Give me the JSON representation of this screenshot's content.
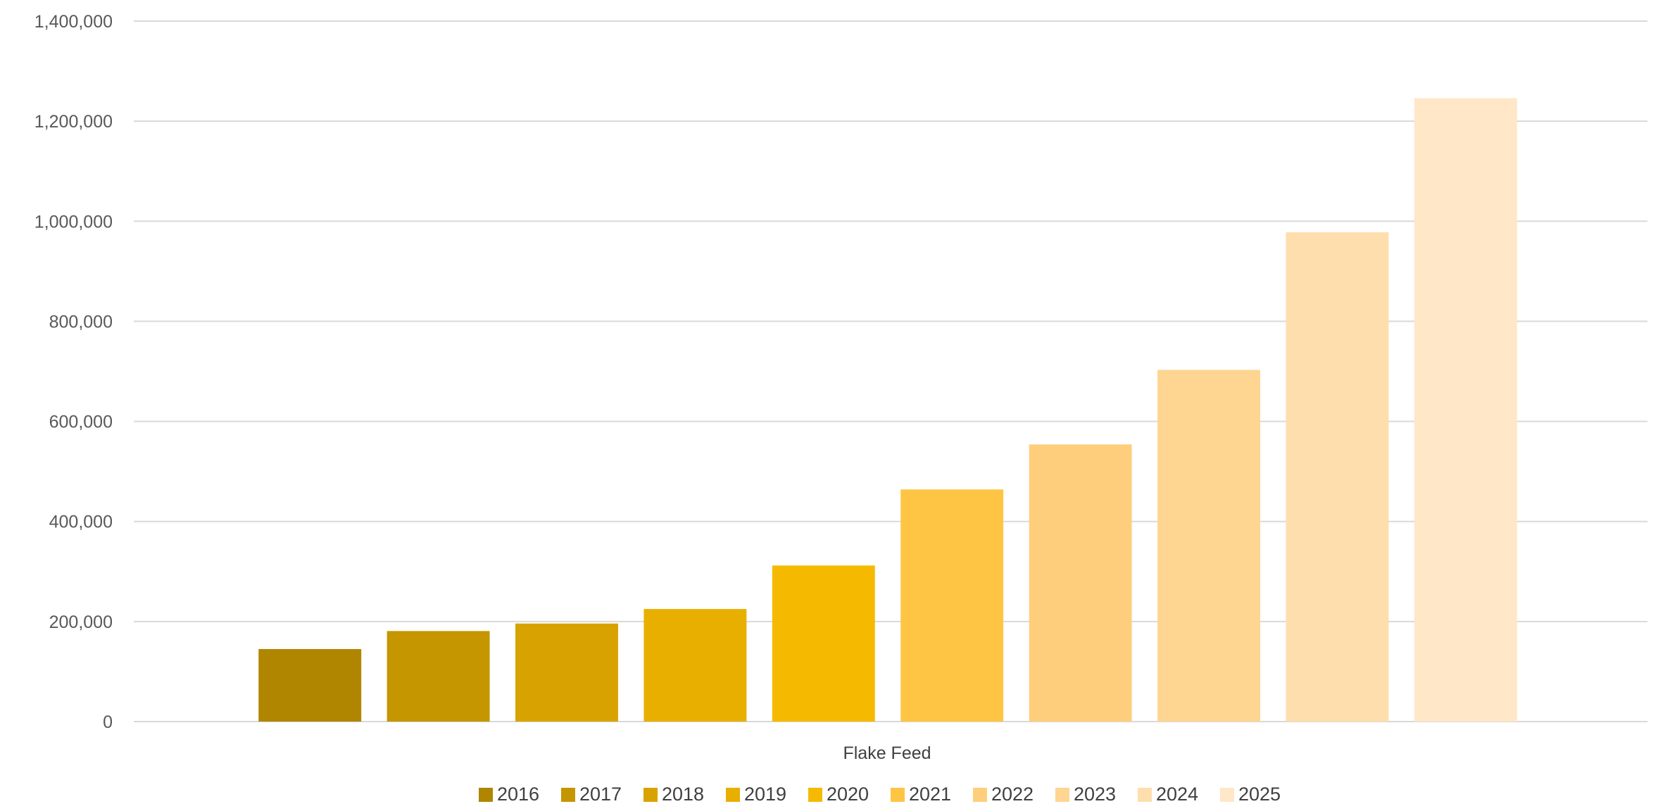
{
  "chart_data": {
    "type": "bar",
    "categories": [
      "Flake Feed"
    ],
    "xlabel": "Flake Feed",
    "ylabel": "",
    "ylim": [
      0,
      1400000
    ],
    "yticks": [
      0,
      200000,
      400000,
      600000,
      800000,
      1000000,
      1200000,
      1400000
    ],
    "ytick_labels": [
      "0",
      "200,000",
      "400,000",
      "600,000",
      "800,000",
      "1,000,000",
      "1,200,000",
      "1,400,000"
    ],
    "grid": true,
    "legend_position": "bottom",
    "series": [
      {
        "name": "2016",
        "values": [
          145000
        ],
        "color": "#B08600"
      },
      {
        "name": "2017",
        "values": [
          181000
        ],
        "color": "#C59600"
      },
      {
        "name": "2018",
        "values": [
          196000
        ],
        "color": "#D8A300"
      },
      {
        "name": "2019",
        "values": [
          225000
        ],
        "color": "#E8AF00"
      },
      {
        "name": "2020",
        "values": [
          312000
        ],
        "color": "#F5BA00"
      },
      {
        "name": "2021",
        "values": [
          464000
        ],
        "color": "#FEC545"
      },
      {
        "name": "2022",
        "values": [
          554000
        ],
        "color": "#FFCE7D"
      },
      {
        "name": "2023",
        "values": [
          703000
        ],
        "color": "#FFD592"
      },
      {
        "name": "2024",
        "values": [
          978000
        ],
        "color": "#FFDEAD"
      },
      {
        "name": "2025",
        "values": [
          1246000
        ],
        "color": "#FFE7C7"
      }
    ]
  }
}
